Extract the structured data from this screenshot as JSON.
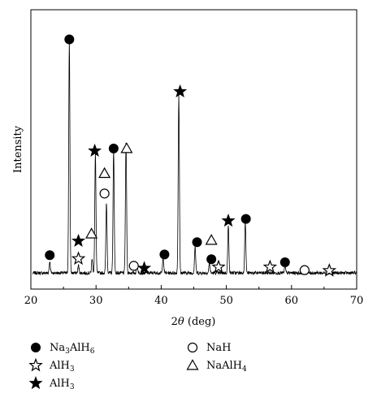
{
  "chart_data": {
    "type": "line",
    "title": "",
    "xlabel_prefix": "2",
    "xlabel_symbol": "θ",
    "xlabel_suffix": " (deg)",
    "ylabel": "Intensity",
    "xlim": [
      20,
      70
    ],
    "ylim": [
      0,
      1000
    ],
    "x_ticks": [
      20,
      30,
      40,
      50,
      60,
      70
    ],
    "x_tick_labels": [
      "20",
      "30",
      "40",
      "50",
      "60",
      "70"
    ],
    "grid": false,
    "baseline": 20,
    "peaks": [
      {
        "x": 22.9,
        "y": 48
      },
      {
        "x": 25.9,
        "y": 985
      },
      {
        "x": 27.3,
        "y": 32
      },
      {
        "x": 29.4,
        "y": 60
      },
      {
        "x": 29.9,
        "y": 505
      },
      {
        "x": 31.6,
        "y": 300
      },
      {
        "x": 32.7,
        "y": 515
      },
      {
        "x": 34.6,
        "y": 555
      },
      {
        "x": 36.3,
        "y": 38
      },
      {
        "x": 40.3,
        "y": 65
      },
      {
        "x": 42.7,
        "y": 755
      },
      {
        "x": 45.2,
        "y": 112
      },
      {
        "x": 47.4,
        "y": 42
      },
      {
        "x": 50.3,
        "y": 200
      },
      {
        "x": 52.9,
        "y": 218
      },
      {
        "x": 59.0,
        "y": 28
      }
    ],
    "annotations": [
      {
        "x": 25.9,
        "y": 1005,
        "phase": "Na3AlH6",
        "symbol": "filled-circle"
      },
      {
        "x": 22.9,
        "y": 95,
        "phase": "Na3AlH6",
        "symbol": "filled-circle"
      },
      {
        "x": 32.7,
        "y": 545,
        "phase": "Na3AlH6",
        "symbol": "filled-circle"
      },
      {
        "x": 40.5,
        "y": 98,
        "phase": "Na3AlH6",
        "symbol": "filled-circle"
      },
      {
        "x": 45.5,
        "y": 150,
        "phase": "Na3AlH6",
        "symbol": "filled-circle"
      },
      {
        "x": 47.7,
        "y": 78,
        "phase": "Na3AlH6",
        "symbol": "filled-circle"
      },
      {
        "x": 53.0,
        "y": 248,
        "phase": "Na3AlH6",
        "symbol": "filled-circle"
      },
      {
        "x": 59.0,
        "y": 65,
        "phase": "Na3AlH6",
        "symbol": "filled-circle"
      },
      {
        "x": 29.8,
        "y": 535,
        "phase": "AlH3",
        "symbol": "filled-star"
      },
      {
        "x": 27.3,
        "y": 155,
        "phase": "AlH3",
        "symbol": "filled-star"
      },
      {
        "x": 37.4,
        "y": 40,
        "phase": "AlH3",
        "symbol": "filled-star"
      },
      {
        "x": 42.9,
        "y": 785,
        "phase": "AlH3",
        "symbol": "filled-star"
      },
      {
        "x": 50.3,
        "y": 240,
        "phase": "AlH3",
        "symbol": "filled-star"
      },
      {
        "x": 27.3,
        "y": 80,
        "phase": "AlH3",
        "symbol": "open-star"
      },
      {
        "x": 48.8,
        "y": 45,
        "phase": "AlH3",
        "symbol": "open-star"
      },
      {
        "x": 56.7,
        "y": 45,
        "phase": "AlH3",
        "symbol": "open-star"
      },
      {
        "x": 65.8,
        "y": 30,
        "phase": "AlH3",
        "symbol": "open-star"
      },
      {
        "x": 31.3,
        "y": 355,
        "phase": "NaH",
        "symbol": "open-circle"
      },
      {
        "x": 35.8,
        "y": 50,
        "phase": "NaH",
        "symbol": "open-circle"
      },
      {
        "x": 62.0,
        "y": 32,
        "phase": "NaH",
        "symbol": "open-circle"
      },
      {
        "x": 34.7,
        "y": 545,
        "phase": "NaAlH4",
        "symbol": "open-triangle"
      },
      {
        "x": 31.3,
        "y": 440,
        "phase": "NaAlH4",
        "symbol": "open-triangle"
      },
      {
        "x": 29.3,
        "y": 185,
        "phase": "NaAlH4",
        "symbol": "open-triangle"
      },
      {
        "x": 47.7,
        "y": 158,
        "phase": "NaAlH4",
        "symbol": "open-triangle"
      }
    ],
    "legend": [
      {
        "symbol": "filled-circle",
        "label_main": "Na",
        "sub1": "3",
        "mid": "AlH",
        "sub2": "6"
      },
      {
        "symbol": "open-star",
        "label_main": "AlH",
        "sub1": "3",
        "mid": "",
        "sub2": ""
      },
      {
        "symbol": "filled-star",
        "label_main": "AlH",
        "sub1": "3",
        "mid": "",
        "sub2": ""
      },
      {
        "symbol": "open-circle",
        "label_main": "NaH",
        "sub1": "",
        "mid": "",
        "sub2": ""
      },
      {
        "symbol": "open-triangle",
        "label_main": "NaAlH",
        "sub1": "4",
        "mid": "",
        "sub2": ""
      }
    ],
    "legend_placement": "below-plot"
  }
}
